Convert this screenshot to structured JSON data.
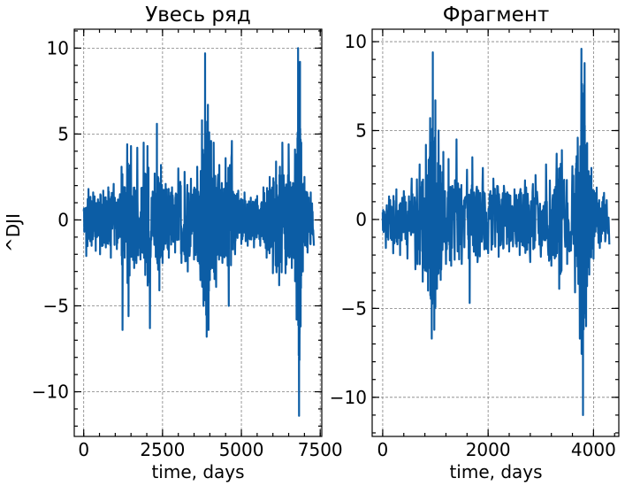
{
  "chart_data": [
    {
      "type": "line",
      "title": "Увесь ряд",
      "xlabel": "time, days",
      "ylabel": "^DJI",
      "xlim": [
        -300,
        7550
      ],
      "ylim": [
        -12.6,
        11.1
      ],
      "xticks": [
        0,
        2500,
        5000,
        7500
      ],
      "xtick_labels": [
        "0",
        "2500",
        "5000",
        "7500"
      ],
      "yticks": [
        -10,
        -5,
        0,
        5,
        10
      ],
      "ytick_labels": [
        "−10",
        "−5",
        "0",
        "5",
        "10"
      ],
      "grid": true,
      "color": "#0c5da5",
      "series": [
        {
          "x": [
            0,
            80,
            150,
            250,
            300,
            380,
            450,
            520,
            620,
            700,
            780,
            860,
            950,
            1050,
            1150,
            1200,
            1230,
            1300,
            1380,
            1420,
            1500,
            1600,
            1700,
            1800,
            1900,
            1950,
            2020,
            2100,
            2250,
            2320,
            2360,
            2400,
            2450,
            2500,
            2600,
            2700,
            2800,
            2900,
            3000,
            3100,
            3200,
            3300,
            3400,
            3500,
            3600,
            3700,
            3750,
            3800,
            3850,
            3900,
            3940,
            3960,
            3980,
            4000,
            4040,
            4080,
            4120,
            4200,
            4300,
            4400,
            4500,
            4600,
            4700,
            4800,
            4900,
            5000,
            5100,
            5200,
            5300,
            5400,
            5500,
            5600,
            5700,
            5800,
            5900,
            6000,
            6100,
            6200,
            6300,
            6400,
            6500,
            6600,
            6700,
            6750,
            6800,
            6830,
            6860,
            6880,
            6900,
            6950,
            7000,
            7100,
            7200,
            7300
          ],
          "y": [
            0.5,
            -2.1,
            1.8,
            -1.5,
            1.6,
            -1.8,
            1.2,
            -2.0,
            1.7,
            -1.6,
            1.9,
            -2.2,
            2.1,
            -1.7,
            1.5,
            3.1,
            -6.4,
            -2.2,
            4.4,
            -5.6,
            4.3,
            -2.8,
            4.2,
            -2.3,
            4.5,
            -3.2,
            4.3,
            -6.3,
            2.7,
            5.6,
            -2.9,
            -4.1,
            3.2,
            -2.5,
            2.1,
            -2.2,
            1.9,
            -1.9,
            3.0,
            -2.5,
            2.8,
            -3.0,
            2.4,
            -2.3,
            3.1,
            -3.5,
            5.8,
            -5.0,
            9.7,
            -6.8,
            6.7,
            -6.4,
            5.1,
            -3.5,
            4.6,
            -2.8,
            4.5,
            -3.9,
            3.2,
            -2.5,
            3.6,
            -5.0,
            4.6,
            -2.0,
            1.7,
            -1.4,
            1.6,
            -1.5,
            1.3,
            -1.6,
            1.4,
            -1.5,
            1.9,
            -2.2,
            2.5,
            -3.1,
            3.4,
            -3.8,
            4.5,
            -3.1,
            4.4,
            -2.8,
            4.1,
            -5.8,
            10.0,
            -11.4,
            9.2,
            -6.2,
            4.5,
            -3.0,
            2.5,
            -1.9,
            1.6,
            -1.5
          ]
        }
      ]
    },
    {
      "type": "line",
      "title": "Фрагмент",
      "xlabel": "time, days",
      "ylabel": "",
      "xlim": [
        -200,
        4480
      ],
      "ylim": [
        -12.2,
        10.7
      ],
      "xticks": [
        0,
        2000,
        4000
      ],
      "xtick_labels": [
        "0",
        "2000",
        "4000"
      ],
      "yticks": [
        -10,
        -5,
        0,
        5,
        10
      ],
      "ytick_labels": [
        "−10",
        "−5",
        "0",
        "5",
        "10"
      ],
      "grid": true,
      "color": "#0c5da5",
      "series": [
        {
          "x": [
            0,
            60,
            120,
            200,
            260,
            330,
            400,
            470,
            550,
            620,
            700,
            760,
            820,
            860,
            900,
            930,
            950,
            980,
            1000,
            1030,
            1060,
            1100,
            1150,
            1200,
            1250,
            1300,
            1400,
            1500,
            1600,
            1650,
            1700,
            1800,
            1900,
            2000,
            2100,
            2200,
            2300,
            2400,
            2500,
            2600,
            2700,
            2800,
            2900,
            3000,
            3100,
            3200,
            3300,
            3350,
            3400,
            3500,
            3600,
            3650,
            3700,
            3740,
            3770,
            3800,
            3830,
            3860,
            3880,
            3920,
            3960,
            4000,
            4060,
            4120,
            4200,
            4300
          ],
          "y": [
            0.4,
            -1.6,
            1.3,
            -1.9,
            1.7,
            -2.0,
            1.6,
            -2.2,
            2.3,
            -2.8,
            3.1,
            -3.5,
            4.2,
            -4.0,
            5.7,
            -6.7,
            9.4,
            -6.2,
            6.7,
            -3.9,
            5.0,
            -3.4,
            3.8,
            -2.5,
            3.4,
            -2.6,
            4.5,
            -2.5,
            2.8,
            -4.7,
            3.5,
            -2.4,
            2.9,
            -1.9,
            2.3,
            -2.1,
            1.9,
            -1.8,
            1.7,
            -2.0,
            2.2,
            -2.4,
            2.5,
            -2.1,
            3.1,
            -2.6,
            3.7,
            -3.9,
            3.9,
            -2.5,
            3.0,
            -4.1,
            4.6,
            -6.7,
            9.6,
            -11.0,
            8.8,
            -6.0,
            4.3,
            -3.1,
            2.9,
            -2.2,
            1.8,
            -1.6,
            1.5,
            -1.4
          ]
        }
      ]
    }
  ]
}
